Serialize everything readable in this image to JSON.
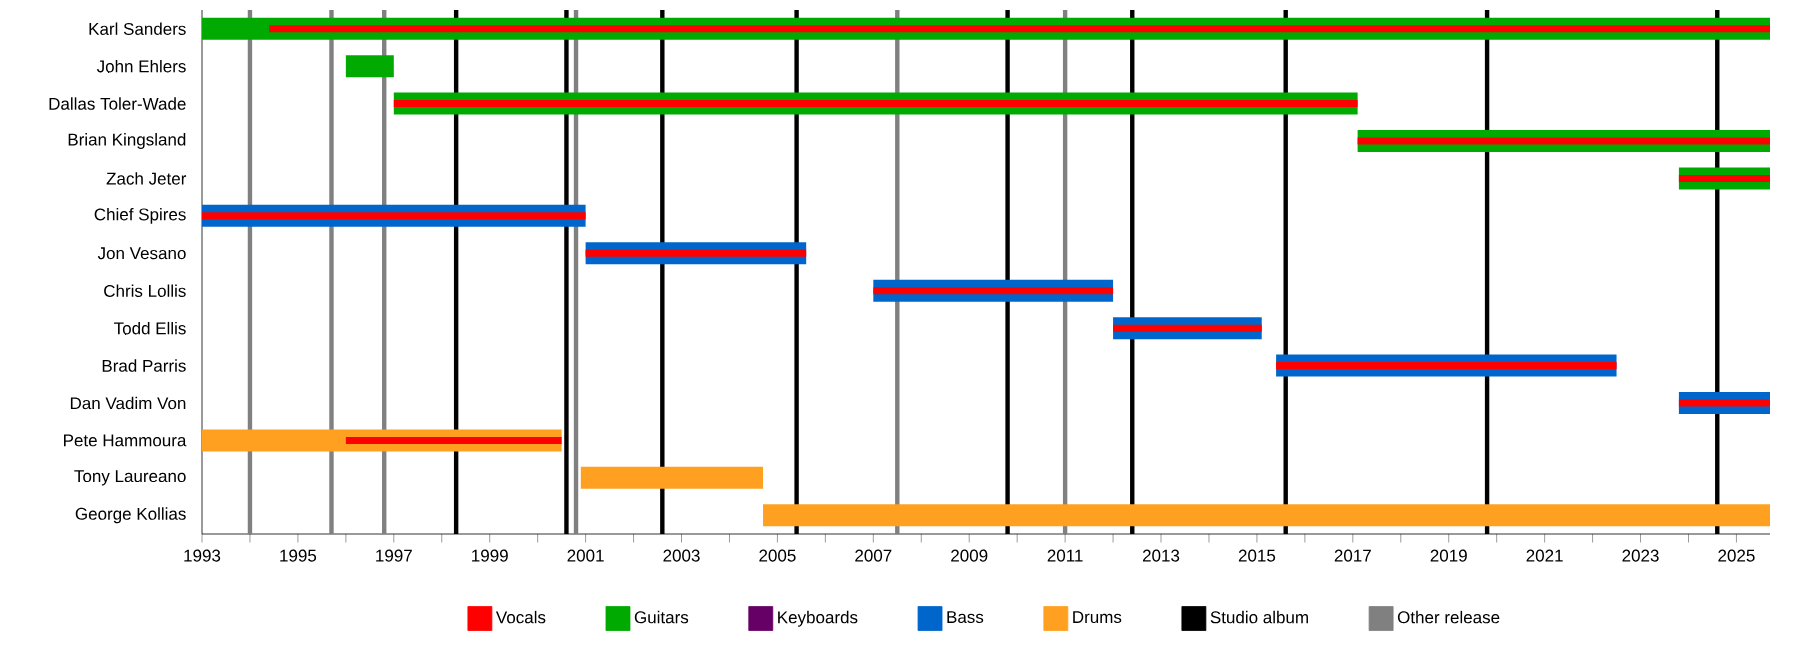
{
  "chart_data": {
    "type": "bar",
    "orientation": "horizontal",
    "categories": [
      "Karl Sanders",
      "John Ehlers",
      "Dallas Toler-Wade",
      "Brian Kingsland",
      "Zach Jeter",
      "Chief Spires",
      "Jon Vesano",
      "Chris Lollis",
      "Todd Ellis",
      "Brad Parris",
      "Dan Vadim Von",
      "Pete Hammoura",
      "Tony Laureano",
      "George Kollias"
    ],
    "series": [
      {
        "name": "Vocals",
        "color": "#ff0000",
        "base": [
          1994.4,
          null,
          1997,
          2017.1,
          2023.8,
          1993,
          2001,
          2007,
          2012,
          2015.4,
          2023.8,
          1996,
          null,
          null
        ],
        "values": [
          31.3,
          null,
          20.1,
          8.6,
          1.9,
          8.0,
          4.6,
          5.0,
          3.1,
          7.1,
          1.9,
          4.5,
          null,
          null
        ]
      },
      {
        "name": "Guitars",
        "color": "#00aa00",
        "base": [
          1993,
          1996,
          1997,
          2017.1,
          2023.8,
          null,
          null,
          null,
          null,
          null,
          null,
          null,
          null,
          null
        ],
        "values": [
          32.7,
          1.0,
          20.1,
          8.6,
          1.9,
          null,
          null,
          null,
          null,
          null,
          null,
          null,
          null,
          null
        ]
      },
      {
        "name": "Keyboards",
        "color": "#660066",
        "values": [
          null,
          null,
          null,
          null,
          null,
          null,
          null,
          null,
          null,
          null,
          null,
          null,
          null,
          null
        ]
      },
      {
        "name": "Bass",
        "color": "#0066cc",
        "base": [
          null,
          null,
          null,
          null,
          null,
          1993,
          2001,
          2007,
          2012,
          2015.4,
          2023.8,
          null,
          null,
          null
        ],
        "values": [
          null,
          null,
          null,
          null,
          null,
          8.0,
          4.6,
          5.0,
          3.1,
          7.1,
          1.9,
          null,
          null,
          null
        ]
      },
      {
        "name": "Drums",
        "color": "#ffa020",
        "base": [
          null,
          null,
          null,
          null,
          null,
          null,
          null,
          null,
          null,
          null,
          null,
          1993,
          2000.9,
          2004.7
        ],
        "values": [
          null,
          null,
          null,
          null,
          null,
          null,
          null,
          null,
          null,
          null,
          null,
          7.5,
          3.8,
          21.0
        ]
      },
      {
        "name": "Studio album",
        "color": "#000000",
        "values": [
          null,
          null,
          null,
          null,
          null,
          null,
          null,
          null,
          null,
          null,
          null,
          null,
          null,
          null
        ]
      },
      {
        "name": "Other release",
        "color": "#808080",
        "values": [
          null,
          null,
          null,
          null,
          null,
          null,
          null,
          null,
          null,
          null,
          null,
          null,
          null,
          null
        ]
      }
    ],
    "ref_lines": [
      {
        "axis": "x",
        "value": 1998.3,
        "color": "#000000"
      },
      {
        "axis": "x",
        "value": 2000.6,
        "color": "#000000"
      },
      {
        "axis": "x",
        "value": 2002.6,
        "color": "#000000"
      },
      {
        "axis": "x",
        "value": 2005.4,
        "color": "#000000"
      },
      {
        "axis": "x",
        "value": 2009.8,
        "color": "#000000"
      },
      {
        "axis": "x",
        "value": 2012.4,
        "color": "#000000"
      },
      {
        "axis": "x",
        "value": 2015.6,
        "color": "#000000"
      },
      {
        "axis": "x",
        "value": 2019.8,
        "color": "#000000"
      },
      {
        "axis": "x",
        "value": 2024.6,
        "color": "#000000"
      },
      {
        "axis": "x",
        "value": 1994.0,
        "color": "#808080"
      },
      {
        "axis": "x",
        "value": 1995.7,
        "color": "#808080"
      },
      {
        "axis": "x",
        "value": 1996.8,
        "color": "#808080"
      },
      {
        "axis": "x",
        "value": 2000.8,
        "color": "#808080"
      },
      {
        "axis": "x",
        "value": 2007.5,
        "color": "#808080"
      },
      {
        "axis": "x",
        "value": 2011.0,
        "color": "#808080"
      }
    ],
    "xlim": [
      1993,
      2025.7
    ],
    "xticks": [
      1993,
      {
        "value": 1994,
        "label": null
      },
      1995,
      {
        "value": 1996,
        "label": null
      },
      1997,
      {
        "value": 1998,
        "label": null
      },
      1999,
      {
        "value": 2000,
        "label": null
      },
      2001,
      {
        "value": 2002,
        "label": null
      },
      2003,
      {
        "value": 2004,
        "label": null
      },
      2005,
      {
        "value": 2006,
        "label": null
      },
      2007,
      {
        "value": 2008,
        "label": null
      },
      2009,
      {
        "value": 2010,
        "label": null
      },
      2011,
      {
        "value": 2012,
        "label": null
      },
      2013,
      {
        "value": 2014,
        "label": null
      },
      2015,
      {
        "value": 2016,
        "label": null
      },
      2017,
      {
        "value": 2018,
        "label": null
      },
      2019,
      {
        "value": 2020,
        "label": null
      },
      2021,
      {
        "value": 2022,
        "label": null
      },
      2023,
      {
        "value": 2024,
        "label": null
      },
      2025
    ],
    "legend": "bottom"
  }
}
